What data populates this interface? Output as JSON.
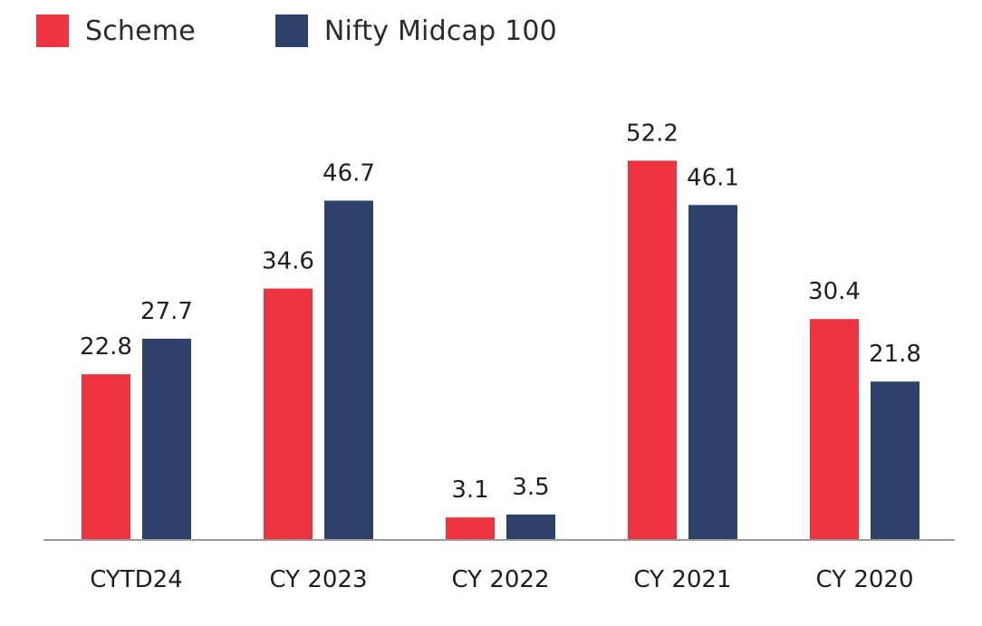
{
  "chart_data": {
    "type": "bar",
    "title": "",
    "xlabel": "",
    "ylabel": "",
    "categories": [
      "CYTD24",
      "CY 2023",
      "CY 2022",
      "CY 2021",
      "CY 2020"
    ],
    "series": [
      {
        "name": "Scheme",
        "color": "#ee3340",
        "values": [
          22.8,
          34.6,
          3.1,
          52.2,
          30.4
        ],
        "labels": [
          "22.8",
          "34.6",
          "3.1",
          "52.2",
          "30.4"
        ]
      },
      {
        "name": "Nifty Midcap 100",
        "color": "#2e416b",
        "values": [
          27.7,
          46.7,
          3.5,
          46.1,
          21.8
        ],
        "labels": [
          "27.7",
          "46.7",
          "3.5",
          "46.1",
          "21.8"
        ]
      }
    ],
    "ylim": [
      0,
      52.2
    ],
    "grid": false,
    "y_axis_visible": false,
    "legend_position": "top-left",
    "data_labels": true,
    "baseline_color": "#9a9a9a"
  }
}
